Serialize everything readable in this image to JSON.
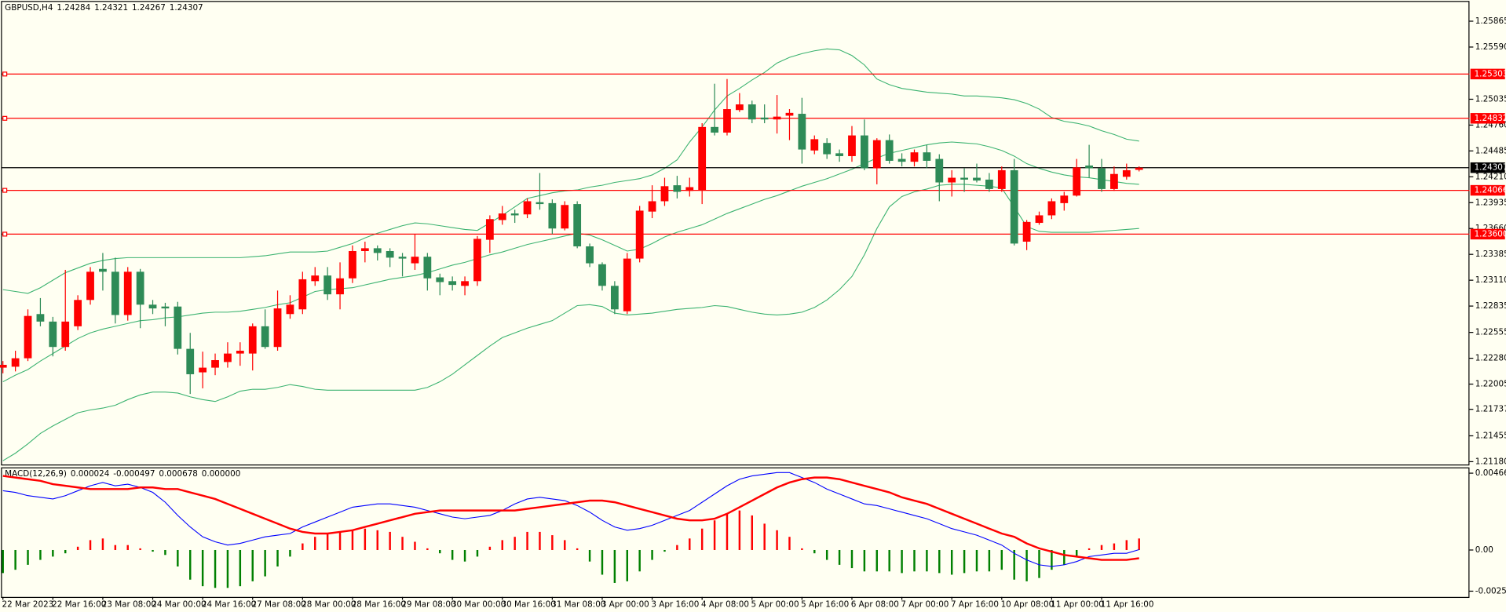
{
  "chart_data": {
    "type": "candlestick",
    "title": "GBPUSD,H4",
    "header_values": [
      "1.24284",
      "1.24321",
      "1.24267",
      "1.24307"
    ],
    "categories": [
      "22 Mar 2023",
      null,
      null,
      null,
      "22 Mar 16:00",
      null,
      null,
      null,
      "23 Mar 08:00",
      null,
      null,
      null,
      "24 Mar 00:00",
      null,
      null,
      null,
      "24 Mar 16:00",
      null,
      null,
      null,
      "27 Mar 08:00",
      null,
      null,
      null,
      "28 Mar 00:00",
      null,
      null,
      null,
      "28 Mar 16:00",
      null,
      null,
      null,
      "29 Mar 08:00",
      null,
      null,
      null,
      "30 Mar 00:00",
      null,
      null,
      null,
      "30 Mar 16:00",
      null,
      null,
      null,
      "31 Mar 08:00",
      null,
      null,
      null,
      "3 Apr 00:00",
      null,
      null,
      null,
      "3 Apr 16:00",
      null,
      null,
      null,
      "4 Apr 08:00",
      null,
      null,
      null,
      "5 Apr 00:00",
      null,
      null,
      null,
      "5 Apr 16:00",
      null,
      null,
      null,
      "6 Apr 08:00",
      null,
      null,
      null,
      "7 Apr 00:00",
      null,
      null,
      null,
      "7 Apr 16:00",
      null,
      null,
      null,
      "10 Apr 08:00",
      null,
      null,
      null,
      "11 Apr 00:00",
      null,
      null,
      null,
      "11 Apr 16:00",
      null,
      null,
      null
    ],
    "open": [
      1.2218,
      1.2219,
      1.2228,
      1.2275,
      1.2267,
      1.224,
      1.2262,
      1.229,
      1.2323,
      1.232,
      1.2274,
      1.232,
      1.2285,
      1.2283,
      1.2283,
      1.2238,
      1.2213,
      1.2218,
      1.2224,
      1.2233,
      1.2233,
      1.2262,
      1.224,
      1.2275,
      1.228,
      1.231,
      1.2316,
      1.2296,
      1.2313,
      1.2342,
      1.2345,
      1.2342,
      1.2336,
      1.2329,
      1.2336,
      1.2314,
      1.231,
      1.2305,
      1.231,
      1.2354,
      1.2375,
      1.2382,
      1.2381,
      1.2394,
      1.2393,
      1.2366,
      1.2392,
      1.2347,
      1.2328,
      1.2305,
      1.2278,
      1.2334,
      1.2384,
      1.2395,
      1.2412,
      1.2406,
      1.2407,
      1.2474,
      1.2468,
      1.2492,
      1.2498,
      1.2484,
      1.2482,
      1.2486,
      1.2488,
      1.2449,
      1.2457,
      1.2446,
      1.2443,
      1.2465,
      1.243,
      1.246,
      1.244,
      1.2437,
      1.2447,
      1.244,
      1.2415,
      1.242,
      1.242,
      1.2418,
      1.2408,
      1.2428,
      1.2352,
      1.2372,
      1.238,
      1.2393,
      1.2401,
      1.2433,
      1.243,
      1.2408,
      1.2421,
      1.24284
    ],
    "high": [
      1.2225,
      1.2236,
      1.228,
      1.2292,
      1.2272,
      1.2322,
      1.2295,
      1.2325,
      1.234,
      1.2335,
      1.2325,
      1.2323,
      1.229,
      1.2287,
      1.2288,
      1.2255,
      1.2235,
      1.2233,
      1.2245,
      1.2245,
      1.2265,
      1.228,
      1.23,
      1.2295,
      1.232,
      1.2325,
      1.2325,
      1.233,
      1.2348,
      1.2352,
      1.2348,
      1.2345,
      1.234,
      1.236,
      1.234,
      1.2318,
      1.2315,
      1.2315,
      1.2358,
      1.238,
      1.239,
      1.2386,
      1.2398,
      1.2425,
      1.2397,
      1.2395,
      1.2395,
      1.235,
      1.233,
      1.231,
      1.234,
      1.239,
      1.2412,
      1.242,
      1.2422,
      1.242,
      1.2478,
      1.252,
      1.2525,
      1.251,
      1.2502,
      1.2498,
      1.2508,
      1.2493,
      1.2505,
      1.2465,
      1.2462,
      1.245,
      1.2475,
      1.2482,
      1.2462,
      1.2466,
      1.2446,
      1.245,
      1.2455,
      1.2445,
      1.2428,
      1.243,
      1.2435,
      1.2425,
      1.2432,
      1.244,
      1.2375,
      1.2384,
      1.2398,
      1.2405,
      1.244,
      1.2455,
      1.244,
      1.2432,
      1.2435,
      1.24321
    ],
    "low": [
      1.2212,
      1.2214,
      1.2225,
      1.2262,
      1.223,
      1.2236,
      1.2258,
      1.2285,
      1.23,
      1.2265,
      1.2268,
      1.226,
      1.2275,
      1.2262,
      1.2232,
      1.219,
      1.2196,
      1.221,
      1.2218,
      1.222,
      1.2215,
      1.2238,
      1.2236,
      1.227,
      1.2275,
      1.2305,
      1.229,
      1.228,
      1.2308,
      1.233,
      1.2332,
      1.2325,
      1.2315,
      1.2322,
      1.23,
      1.2295,
      1.23,
      1.2295,
      1.2305,
      1.234,
      1.237,
      1.2372,
      1.2377,
      1.2386,
      1.236,
      1.2364,
      1.2345,
      1.2325,
      1.23,
      1.2275,
      1.2275,
      1.233,
      1.2377,
      1.239,
      1.2398,
      1.24,
      1.2392,
      1.2465,
      1.2465,
      1.249,
      1.2478,
      1.2478,
      1.2467,
      1.246,
      1.2435,
      1.2445,
      1.244,
      1.2437,
      1.2437,
      1.2428,
      1.2413,
      1.2435,
      1.2432,
      1.2432,
      1.243,
      1.2395,
      1.24,
      1.2405,
      1.2415,
      1.2405,
      1.2405,
      1.2348,
      1.2343,
      1.237,
      1.2376,
      1.2385,
      1.24,
      1.242,
      1.2405,
      1.2406,
      1.2418,
      1.24267
    ],
    "close": [
      1.2221,
      1.2228,
      1.2273,
      1.2267,
      1.224,
      1.2267,
      1.229,
      1.232,
      1.232,
      1.2274,
      1.232,
      1.2285,
      1.2281,
      1.2281,
      1.2238,
      1.2211,
      1.2218,
      1.2226,
      1.2233,
      1.2236,
      1.2262,
      1.224,
      1.2281,
      1.2285,
      1.2312,
      1.2316,
      1.2296,
      1.2313,
      1.2342,
      1.2345,
      1.234,
      1.2335,
      1.2334,
      1.2336,
      1.2313,
      1.2309,
      1.2306,
      1.231,
      1.2355,
      1.2376,
      1.2382,
      1.238,
      1.2395,
      1.2392,
      1.2366,
      1.2391,
      1.2347,
      1.2329,
      1.2305,
      1.228,
      1.2334,
      1.2385,
      1.2395,
      1.2411,
      1.2405,
      1.241,
      1.2474,
      1.2468,
      1.2493,
      1.2498,
      1.2482,
      1.2482,
      1.2485,
      1.2489,
      1.245,
      1.2461,
      1.2445,
      1.2443,
      1.2465,
      1.243,
      1.246,
      1.2438,
      1.2437,
      1.2447,
      1.2438,
      1.2415,
      1.242,
      1.2418,
      1.2417,
      1.2408,
      1.2428,
      1.235,
      1.2373,
      1.238,
      1.2395,
      1.2401,
      1.2431,
      1.243,
      1.2408,
      1.2424,
      1.2428,
      1.24307
    ],
    "colors": {
      "up": "#ff0000",
      "down": "#2e8b57"
    },
    "bollinger": {
      "color": "#3cb371",
      "upper": [
        1.2301,
        1.2299,
        1.2297,
        1.2303,
        1.2311,
        1.2319,
        1.2324,
        1.2329,
        1.2332,
        1.2334,
        1.2335,
        1.2335,
        1.2335,
        1.2335,
        1.2335,
        1.2335,
        1.2335,
        1.2335,
        1.2335,
        1.2335,
        1.2336,
        1.2337,
        1.2339,
        1.2341,
        1.2341,
        1.2341,
        1.2342,
        1.2346,
        1.235,
        1.2356,
        1.2361,
        1.2365,
        1.2369,
        1.2372,
        1.2371,
        1.2369,
        1.2367,
        1.2365,
        1.2364,
        1.2372,
        1.238,
        1.2389,
        1.2398,
        1.2401,
        1.2404,
        1.2406,
        1.2407,
        1.241,
        1.2412,
        1.2415,
        1.2417,
        1.2419,
        1.2423,
        1.243,
        1.2439,
        1.2458,
        1.2474,
        1.2492,
        1.2507,
        1.2515,
        1.2524,
        1.2532,
        1.2542,
        1.2548,
        1.2552,
        1.2555,
        1.2557,
        1.2556,
        1.255,
        1.254,
        1.2525,
        1.2519,
        1.2515,
        1.2513,
        1.2511,
        1.251,
        1.2509,
        1.2507,
        1.2507,
        1.2506,
        1.2505,
        1.2503,
        1.2499,
        1.2493,
        1.2484,
        1.248,
        1.2478,
        1.2475,
        1.247,
        1.2466,
        1.2461,
        1.2459
      ],
      "middle": [
        1.2203,
        1.221,
        1.2216,
        1.2225,
        1.2233,
        1.2241,
        1.2249,
        1.2255,
        1.2259,
        1.2262,
        1.2265,
        1.2268,
        1.2269,
        1.2271,
        1.2272,
        1.2274,
        1.2276,
        1.2277,
        1.2277,
        1.2278,
        1.228,
        1.2282,
        1.2285,
        1.2287,
        1.2293,
        1.2299,
        1.2301,
        1.2302,
        1.2303,
        1.2306,
        1.2309,
        1.2312,
        1.2314,
        1.2316,
        1.2319,
        1.2323,
        1.2327,
        1.233,
        1.2334,
        1.2338,
        1.2341,
        1.2345,
        1.2349,
        1.2352,
        1.2355,
        1.2358,
        1.2361,
        1.2359,
        1.2354,
        1.2348,
        1.2342,
        1.2344,
        1.235,
        1.2357,
        1.2362,
        1.2366,
        1.237,
        1.2376,
        1.2382,
        1.2387,
        1.2392,
        1.2397,
        1.2401,
        1.2406,
        1.2411,
        1.2415,
        1.2419,
        1.2424,
        1.2429,
        1.2435,
        1.2441,
        1.2446,
        1.2449,
        1.2452,
        1.2455,
        1.2457,
        1.2458,
        1.2457,
        1.2456,
        1.2453,
        1.2449,
        1.2443,
        1.2435,
        1.243,
        1.2426,
        1.2423,
        1.2421,
        1.242,
        1.2418,
        1.2416,
        1.2414,
        1.2413
      ],
      "lower": [
        1.2119,
        1.2127,
        1.2137,
        1.2148,
        1.2156,
        1.2163,
        1.217,
        1.2173,
        1.2175,
        1.2178,
        1.2184,
        1.2189,
        1.2192,
        1.2192,
        1.2191,
        1.2187,
        1.2184,
        1.2182,
        1.2187,
        1.2193,
        1.2195,
        1.2195,
        1.2197,
        1.22,
        1.2198,
        1.2195,
        1.2194,
        1.2194,
        1.2194,
        1.2194,
        1.2194,
        1.2194,
        1.2194,
        1.2194,
        1.2197,
        1.2203,
        1.2211,
        1.2221,
        1.2231,
        1.2241,
        1.225,
        1.2255,
        1.226,
        1.2264,
        1.2268,
        1.2276,
        1.2284,
        1.2285,
        1.2283,
        1.2276,
        1.2274,
        1.2275,
        1.2276,
        1.2278,
        1.228,
        1.2281,
        1.2282,
        1.2284,
        1.2283,
        1.228,
        1.2277,
        1.2275,
        1.2274,
        1.2275,
        1.2277,
        1.2282,
        1.229,
        1.2301,
        1.2315,
        1.2338,
        1.2366,
        1.2389,
        1.24,
        1.2405,
        1.2408,
        1.2412,
        1.2413,
        1.2413,
        1.2412,
        1.2411,
        1.2409,
        1.2389,
        1.2368,
        1.2363,
        1.2362,
        1.2362,
        1.2362,
        1.2362,
        1.2363,
        1.2364,
        1.2365,
        1.2366
      ]
    },
    "levels": [
      {
        "value": 1.25303,
        "label": "1.25303"
      },
      {
        "value": 1.24832,
        "label": "1.24832"
      },
      {
        "value": 1.24066,
        "label": "1.24066"
      },
      {
        "value": 1.236,
        "label": "1.23600"
      }
    ],
    "level_color": "#ff0000",
    "price_line": {
      "value": 1.24307,
      "label": "1.24307"
    },
    "ylim": [
      1.2115,
      1.2607
    ],
    "yticks": [
      {
        "value": 1.25865,
        "label": "1.25865"
      },
      {
        "value": 1.2559,
        "label": "1.25590"
      },
      {
        "value": 1.25035,
        "label": "1.25035"
      },
      {
        "value": 1.2476,
        "label": "1.24760"
      },
      {
        "value": 1.24485,
        "label": "1.24485"
      },
      {
        "value": 1.2421,
        "label": "1.24210"
      },
      {
        "value": 1.23935,
        "label": "1.23935"
      },
      {
        "value": 1.2366,
        "label": "1.23660"
      },
      {
        "value": 1.23385,
        "label": "1.23385"
      },
      {
        "value": 1.2311,
        "label": "1.23110"
      },
      {
        "value": 1.22835,
        "label": "1.22835"
      },
      {
        "value": 1.22555,
        "label": "1.22555"
      },
      {
        "value": 1.2228,
        "label": "1.22280"
      },
      {
        "value": 1.22005,
        "label": "1.22005"
      },
      {
        "value": 1.21737,
        "label": "1.21737"
      },
      {
        "value": 1.21455,
        "label": "1.21455"
      },
      {
        "value": 1.2118,
        "label": "1.21180"
      }
    ],
    "macd": {
      "title": "MACD(12,26,9)",
      "header_values": [
        "0.000024",
        "-0.000497",
        "0.000678",
        "0.000000"
      ],
      "histogram": [
        -0.0014,
        -0.0012,
        -0.0009,
        -0.0006,
        -0.0004,
        -0.0002,
        0.0002,
        0.0006,
        0.0007,
        0.0003,
        0.0003,
        0.0001,
        -0.0001,
        -0.0003,
        -0.001,
        -0.0018,
        -0.0022,
        -0.0023,
        -0.0023,
        -0.0022,
        -0.0019,
        -0.0016,
        -0.001,
        -0.0004,
        0.0004,
        0.0008,
        0.001,
        0.0011,
        0.0012,
        0.0013,
        0.0012,
        0.0011,
        0.0008,
        0.0005,
        0.0001,
        -0.0002,
        -0.0006,
        -0.0007,
        -0.0004,
        0.0002,
        0.0006,
        0.0008,
        0.0011,
        0.0011,
        0.0009,
        0.0006,
        0.0001,
        -0.0007,
        -0.0015,
        -0.002,
        -0.0019,
        -0.0013,
        -0.0006,
        -0.0001,
        0.0003,
        0.0007,
        0.0013,
        0.0018,
        0.0022,
        0.0024,
        0.0021,
        0.0016,
        0.0012,
        0.0008,
        0.0001,
        -0.0002,
        -0.0006,
        -0.0009,
        -0.0011,
        -0.0013,
        -0.0013,
        -0.0013,
        -0.0014,
        -0.0013,
        -0.0013,
        -0.0014,
        -0.0015,
        -0.0014,
        -0.0013,
        -0.0013,
        -0.0012,
        -0.0018,
        -0.0019,
        -0.0017,
        -0.0012,
        -0.0009,
        -0.0004,
        0.0001,
        0.0003,
        0.0004,
        0.0006,
        0.0007
      ],
      "main": [
        0.0036,
        0.0035,
        0.0033,
        0.0032,
        0.0031,
        0.0033,
        0.0036,
        0.0039,
        0.0041,
        0.0039,
        0.004,
        0.0038,
        0.0035,
        0.0029,
        0.0021,
        0.0014,
        0.0008,
        0.0005,
        0.0003,
        0.0004,
        0.0006,
        0.0008,
        0.0009,
        0.001,
        0.0014,
        0.0017,
        0.002,
        0.0023,
        0.0026,
        0.0027,
        0.0028,
        0.0028,
        0.0027,
        0.0026,
        0.0024,
        0.0022,
        0.002,
        0.0019,
        0.002,
        0.0021,
        0.0024,
        0.0028,
        0.0031,
        0.0032,
        0.0031,
        0.003,
        0.0027,
        0.0023,
        0.0018,
        0.0014,
        0.0012,
        0.0013,
        0.0015,
        0.0018,
        0.0021,
        0.0024,
        0.0029,
        0.0034,
        0.0039,
        0.0043,
        0.0045,
        0.0046,
        0.0047,
        0.0047,
        0.0044,
        0.0041,
        0.0037,
        0.0034,
        0.0031,
        0.0028,
        0.0027,
        0.0025,
        0.0023,
        0.0021,
        0.0019,
        0.0016,
        0.0013,
        0.0011,
        0.0009,
        0.0006,
        0.0003,
        -0.0002,
        -0.0006,
        -0.0009,
        -0.001,
        -0.0009,
        -0.0007,
        -0.0004,
        -0.0003,
        -0.0002,
        -0.0002,
        2.4e-05
      ],
      "signal": [
        0.0045,
        0.0044,
        0.0043,
        0.0042,
        0.004,
        0.0039,
        0.0038,
        0.0037,
        0.0037,
        0.0037,
        0.0037,
        0.0038,
        0.0038,
        0.0037,
        0.0037,
        0.0035,
        0.0033,
        0.0031,
        0.0028,
        0.0025,
        0.0022,
        0.0019,
        0.0016,
        0.0013,
        0.0011,
        0.001,
        0.001,
        0.0011,
        0.0012,
        0.0014,
        0.0016,
        0.0018,
        0.002,
        0.0022,
        0.0023,
        0.0024,
        0.0024,
        0.0024,
        0.0024,
        0.0024,
        0.0024,
        0.0024,
        0.0025,
        0.0026,
        0.0027,
        0.0028,
        0.0029,
        0.003,
        0.003,
        0.0029,
        0.0027,
        0.0025,
        0.0023,
        0.0021,
        0.0019,
        0.0018,
        0.0018,
        0.0019,
        0.0022,
        0.0026,
        0.003,
        0.0034,
        0.0038,
        0.0041,
        0.0043,
        0.0044,
        0.0044,
        0.0043,
        0.0041,
        0.0039,
        0.0037,
        0.0035,
        0.0032,
        0.003,
        0.0028,
        0.0025,
        0.0022,
        0.0019,
        0.0016,
        0.0013,
        0.001,
        0.0008,
        0.0004,
        0.0001,
        -0.0001,
        -0.0003,
        -0.0004,
        -0.0005,
        -0.0006,
        -0.0006,
        -0.0006,
        -0.0005
      ],
      "colors": {
        "positive": "#ff0000",
        "negative": "#008000",
        "main": "#0000ff",
        "signal": "#ff0000"
      },
      "ylim": [
        -0.00285,
        0.00496
      ],
      "yticks": [
        {
          "value": 0.004666,
          "label": "0.004666"
        },
        {
          "value": 0,
          "label": "0.00"
        },
        {
          "value": -0.0025,
          "label": "-0.0025"
        }
      ]
    }
  }
}
